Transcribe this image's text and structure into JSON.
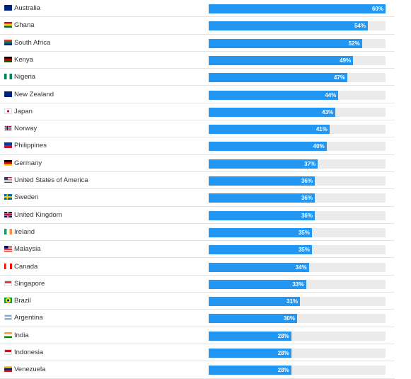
{
  "chart_data": {
    "type": "bar",
    "orientation": "horizontal",
    "categories": [
      "Australia",
      "Ghana",
      "South Africa",
      "Kenya",
      "Nigeria",
      "New Zealand",
      "Japan",
      "Norway",
      "Philippines",
      "Germany",
      "United States of America",
      "Sweden",
      "United Kingdom",
      "Ireland",
      "Malaysia",
      "Canada",
      "Singapore",
      "Brazil",
      "Argentina",
      "India",
      "Indonesia",
      "Venezuela"
    ],
    "values": [
      60,
      54,
      52,
      49,
      47,
      44,
      43,
      41,
      40,
      37,
      36,
      36,
      36,
      35,
      35,
      34,
      33,
      31,
      30,
      28,
      28,
      28
    ],
    "value_labels": [
      "60%",
      "54%",
      "52%",
      "49%",
      "47%",
      "44%",
      "43%",
      "41%",
      "40%",
      "37%",
      "36%",
      "36%",
      "36%",
      "35%",
      "35%",
      "34%",
      "33%",
      "31%",
      "30%",
      "28%",
      "28%",
      "28%"
    ],
    "xlim": [
      0,
      60
    ],
    "unit": "%",
    "grid": false,
    "colors": {
      "bar": "#2196f3",
      "track": "#ebebeb",
      "label": "#333333"
    }
  },
  "flags": [
    {
      "icon": "australia-flag-icon",
      "colors": [
        "#00247d",
        "#ffffff",
        "#cc0000"
      ]
    },
    {
      "icon": "ghana-flag-icon",
      "colors": [
        "#ce1126",
        "#fcd116",
        "#006b3f"
      ]
    },
    {
      "icon": "south-africa-flag-icon",
      "colors": [
        "#007a4d",
        "#ffb612",
        "#002395",
        "#de3831"
      ]
    },
    {
      "icon": "kenya-flag-icon",
      "colors": [
        "#000000",
        "#bb0000",
        "#006600"
      ]
    },
    {
      "icon": "nigeria-flag-icon",
      "colors": [
        "#008751",
        "#ffffff"
      ]
    },
    {
      "icon": "new-zealand-flag-icon",
      "colors": [
        "#00247d",
        "#cc142b"
      ]
    },
    {
      "icon": "japan-flag-icon",
      "colors": [
        "#ffffff",
        "#bc002d"
      ]
    },
    {
      "icon": "norway-flag-icon",
      "colors": [
        "#ba0c2f",
        "#ffffff",
        "#00205b"
      ]
    },
    {
      "icon": "philippines-flag-icon",
      "colors": [
        "#0038a8",
        "#ce1126",
        "#ffffff",
        "#fcd116"
      ]
    },
    {
      "icon": "germany-flag-icon",
      "colors": [
        "#000000",
        "#dd0000",
        "#ffce00"
      ]
    },
    {
      "icon": "usa-flag-icon",
      "colors": [
        "#b22234",
        "#ffffff",
        "#3c3b6e"
      ]
    },
    {
      "icon": "sweden-flag-icon",
      "colors": [
        "#006aa7",
        "#fecc00"
      ]
    },
    {
      "icon": "uk-flag-icon",
      "colors": [
        "#012169",
        "#ffffff",
        "#c8102e"
      ]
    },
    {
      "icon": "ireland-flag-icon",
      "colors": [
        "#169b62",
        "#ffffff",
        "#ff883e"
      ]
    },
    {
      "icon": "malaysia-flag-icon",
      "colors": [
        "#cc0001",
        "#ffffff",
        "#010066",
        "#ffcc00"
      ]
    },
    {
      "icon": "canada-flag-icon",
      "colors": [
        "#ff0000",
        "#ffffff"
      ]
    },
    {
      "icon": "singapore-flag-icon",
      "colors": [
        "#ef3340",
        "#ffffff"
      ]
    },
    {
      "icon": "brazil-flag-icon",
      "colors": [
        "#009c3b",
        "#ffdf00",
        "#002776"
      ]
    },
    {
      "icon": "argentina-flag-icon",
      "colors": [
        "#74acdf",
        "#ffffff",
        "#f6b40e"
      ]
    },
    {
      "icon": "india-flag-icon",
      "colors": [
        "#ff9933",
        "#ffffff",
        "#138808"
      ]
    },
    {
      "icon": "indonesia-flag-icon",
      "colors": [
        "#ce1126",
        "#ffffff"
      ]
    },
    {
      "icon": "venezuela-flag-icon",
      "colors": [
        "#ffcc00",
        "#00247d",
        "#cf142b"
      ]
    }
  ]
}
